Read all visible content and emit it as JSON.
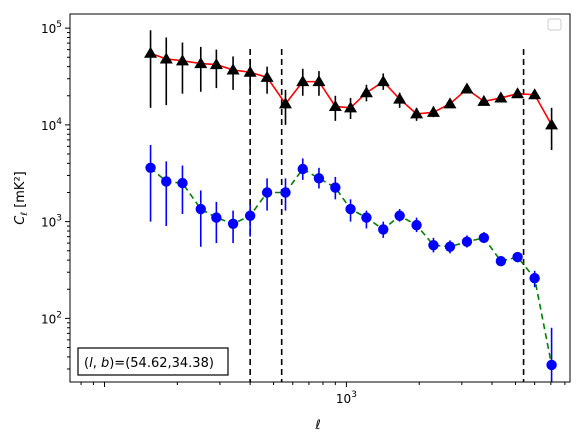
{
  "chart_data": {
    "type": "scatter",
    "title": "",
    "xlabel": "ℓ",
    "ylabel": "C_ℓ [mK²]",
    "xscale": "log",
    "yscale": "log",
    "xlim": [
      72,
      8400
    ],
    "ylim": [
      22,
      140000
    ],
    "grid": false,
    "legend": {
      "placement": "top-right",
      "entries": []
    },
    "x_ticks": [
      {
        "value": 1000,
        "label": "10^3"
      }
    ],
    "y_ticks": [
      {
        "value": 100,
        "label": "10^2"
      },
      {
        "value": 1000,
        "label": "10^3"
      },
      {
        "value": 10000,
        "label": "10^4"
      },
      {
        "value": 100000,
        "label": "10^5"
      }
    ],
    "vlines": [
      {
        "x": 400,
        "color": "#000000",
        "style": "dashed"
      },
      {
        "x": 540,
        "color": "#000000",
        "style": "dashed"
      },
      {
        "x": 5400,
        "color": "#000000",
        "style": "dashed"
      }
    ],
    "annotation": {
      "text": "(l, b)=(54.62,34.38)",
      "placement": "bottom-left"
    },
    "series": [
      {
        "marker": "triangle",
        "marker_color": "#000000",
        "line_color": "#ff0000",
        "line_style": "solid",
        "errorbar_color": "#000000",
        "points": [
          {
            "x": 155,
            "y": 55000,
            "lo": 15000,
            "hi": 95000
          },
          {
            "x": 180,
            "y": 48000,
            "lo": 16000,
            "hi": 80000
          },
          {
            "x": 210,
            "y": 46000,
            "lo": 21000,
            "hi": 71000
          },
          {
            "x": 250,
            "y": 43000,
            "lo": 22000,
            "hi": 64000
          },
          {
            "x": 290,
            "y": 42000,
            "lo": 24000,
            "hi": 60000
          },
          {
            "x": 340,
            "y": 37000,
            "lo": 23000,
            "hi": 51000
          },
          {
            "x": 400,
            "y": 35000,
            "lo": 21000,
            "hi": 48000
          },
          {
            "x": 470,
            "y": 31000,
            "lo": 21000,
            "hi": 40000
          },
          {
            "x": 560,
            "y": 16500,
            "lo": 10000,
            "hi": 23000
          },
          {
            "x": 660,
            "y": 28000,
            "lo": 20000,
            "hi": 38000
          },
          {
            "x": 770,
            "y": 28000,
            "lo": 20000,
            "hi": 36000
          },
          {
            "x": 900,
            "y": 15500,
            "lo": 11000,
            "hi": 20000
          },
          {
            "x": 1040,
            "y": 15000,
            "lo": 11500,
            "hi": 19000
          },
          {
            "x": 1210,
            "y": 21500,
            "lo": 17500,
            "hi": 26000
          },
          {
            "x": 1420,
            "y": 28000,
            "lo": 23000,
            "hi": 34000
          },
          {
            "x": 1660,
            "y": 18500,
            "lo": 15000,
            "hi": 21500
          },
          {
            "x": 1950,
            "y": 13000,
            "lo": 11000,
            "hi": 15000
          },
          {
            "x": 2290,
            "y": 13500,
            "lo": 12000,
            "hi": 15500
          },
          {
            "x": 2680,
            "y": 16500,
            "lo": 15000,
            "hi": 18000
          },
          {
            "x": 3150,
            "y": 23500,
            "lo": 22000,
            "hi": 26000
          },
          {
            "x": 3700,
            "y": 17500,
            "lo": 16000,
            "hi": 19000
          },
          {
            "x": 4350,
            "y": 19000,
            "lo": 17500,
            "hi": 21000
          },
          {
            "x": 5100,
            "y": 21000,
            "lo": 19000,
            "hi": 23000
          },
          {
            "x": 6000,
            "y": 20500,
            "lo": 18500,
            "hi": 23000
          },
          {
            "x": 7050,
            "y": 10000,
            "lo": 5500,
            "hi": 15000
          }
        ]
      },
      {
        "marker": "circle",
        "marker_color": "#0000ff",
        "line_color": "#008000",
        "line_style": "dashed",
        "errorbar_color": "#0000ff",
        "points": [
          {
            "x": 155,
            "y": 3600,
            "lo": 1000,
            "hi": 6200
          },
          {
            "x": 180,
            "y": 2600,
            "lo": 900,
            "hi": 4200
          },
          {
            "x": 210,
            "y": 2500,
            "lo": 1200,
            "hi": 3800
          },
          {
            "x": 250,
            "y": 1350,
            "lo": 550,
            "hi": 2100
          },
          {
            "x": 290,
            "y": 1100,
            "lo": 600,
            "hi": 1600
          },
          {
            "x": 340,
            "y": 950,
            "lo": 600,
            "hi": 1300
          },
          {
            "x": 400,
            "y": 1150,
            "lo": 700,
            "hi": 1500
          },
          {
            "x": 470,
            "y": 2000,
            "lo": 1300,
            "hi": 2800
          },
          {
            "x": 560,
            "y": 2000,
            "lo": 1300,
            "hi": 2800
          },
          {
            "x": 660,
            "y": 3500,
            "lo": 2700,
            "hi": 4500
          },
          {
            "x": 770,
            "y": 2800,
            "lo": 2200,
            "hi": 3600
          },
          {
            "x": 900,
            "y": 2250,
            "lo": 1700,
            "hi": 2900
          },
          {
            "x": 1040,
            "y": 1350,
            "lo": 1000,
            "hi": 1700
          },
          {
            "x": 1210,
            "y": 1100,
            "lo": 850,
            "hi": 1300
          },
          {
            "x": 1420,
            "y": 830,
            "lo": 680,
            "hi": 1000
          },
          {
            "x": 1660,
            "y": 1150,
            "lo": 1000,
            "hi": 1350
          },
          {
            "x": 1950,
            "y": 920,
            "lo": 780,
            "hi": 1100
          },
          {
            "x": 2290,
            "y": 570,
            "lo": 480,
            "hi": 680
          },
          {
            "x": 2680,
            "y": 550,
            "lo": 470,
            "hi": 640
          },
          {
            "x": 3150,
            "y": 620,
            "lo": 540,
            "hi": 720
          },
          {
            "x": 3700,
            "y": 680,
            "lo": 600,
            "hi": 780
          },
          {
            "x": 4350,
            "y": 390,
            "lo": 350,
            "hi": 440
          },
          {
            "x": 5100,
            "y": 430,
            "lo": 380,
            "hi": 480
          },
          {
            "x": 6000,
            "y": 260,
            "lo": 210,
            "hi": 310
          },
          {
            "x": 7050,
            "y": 33,
            "lo": 22,
            "hi": 80
          }
        ]
      }
    ]
  }
}
